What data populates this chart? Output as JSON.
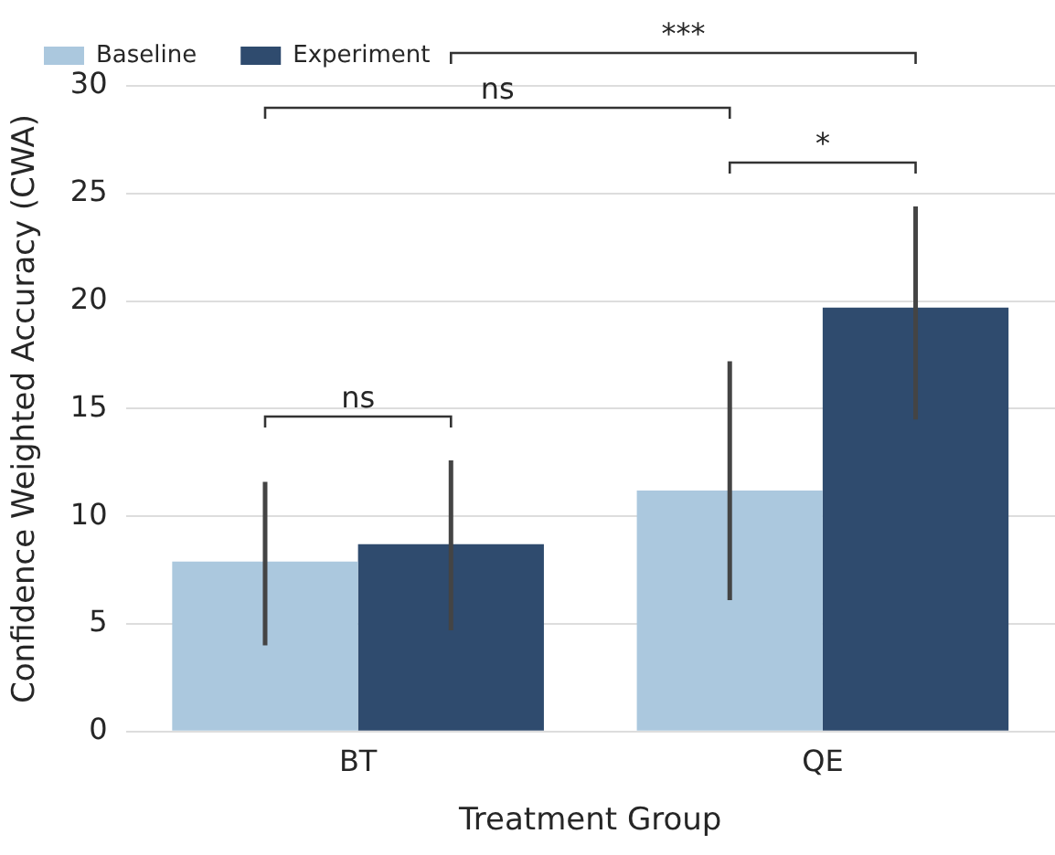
{
  "chart_data": {
    "type": "bar",
    "xlabel": "Treatment Group",
    "ylabel": "Confidence Weighted Accuracy (CWA)",
    "categories": [
      "BT",
      "QE"
    ],
    "series": [
      {
        "name": "Baseline",
        "color": "#abc8de",
        "values": [
          7.9,
          11.2
        ],
        "errors": [
          [
            4.0,
            11.6
          ],
          [
            6.1,
            17.2
          ]
        ]
      },
      {
        "name": "Experiment",
        "color": "#2f4b6e",
        "values": [
          8.7,
          19.7
        ],
        "errors": [
          [
            4.7,
            12.6
          ],
          [
            14.5,
            24.4
          ]
        ]
      }
    ],
    "ylim": [
      0,
      30
    ],
    "yticks": [
      0,
      5,
      10,
      15,
      20,
      25,
      30
    ],
    "grid": "y",
    "legend": "top left",
    "annotations": [
      "ns",
      "*",
      "ns",
      "***"
    ]
  }
}
